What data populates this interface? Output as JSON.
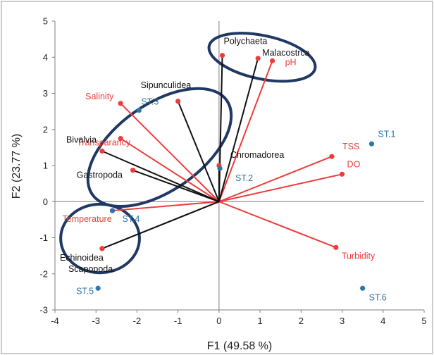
{
  "chart_data": {
    "type": "scatter",
    "subtype": "biplot",
    "xlabel": "F1 (49.58 %)",
    "ylabel": "F2 (23.77 %)",
    "xlim": [
      -4,
      5
    ],
    "ylim": [
      -3,
      5
    ],
    "x_ticks": [
      "-4",
      "-3",
      "-2",
      "-1",
      "0",
      "1",
      "2",
      "3",
      "4",
      "5"
    ],
    "y_ticks": [
      "-3",
      "-2",
      "-1",
      "0",
      "1",
      "2",
      "3",
      "4",
      "5"
    ],
    "grid": false,
    "colors": {
      "environmental": "#ee3b3b",
      "biological": "#111111",
      "station": "#2e75a8",
      "ellipse": "#1f3864"
    },
    "series": [
      {
        "group": "environmental",
        "points": [
          {
            "label": "Salinity",
            "x": -2.4,
            "y": 2.72
          },
          {
            "label": "Transparancy",
            "x": -2.4,
            "y": 1.75
          },
          {
            "label": "Temperature",
            "x": -2.6,
            "y": -0.25
          },
          {
            "label": "TSS",
            "x": 2.75,
            "y": 1.25
          },
          {
            "label": "DO",
            "x": 3.0,
            "y": 0.76
          },
          {
            "label": "Turbidity",
            "x": 2.85,
            "y": -1.27
          },
          {
            "label": "pH",
            "x": 1.3,
            "y": 3.9
          }
        ]
      },
      {
        "group": "biological",
        "points": [
          {
            "label": "Polychaeta",
            "x": 0.08,
            "y": 4.05
          },
          {
            "label": "Malacostrca",
            "x": 0.95,
            "y": 3.97
          },
          {
            "label": "Sipunculidea",
            "x": -1.0,
            "y": 2.78
          },
          {
            "label": "Bivalvia",
            "x": -2.85,
            "y": 1.4
          },
          {
            "label": "Gastropoda",
            "x": -2.1,
            "y": 0.87
          },
          {
            "label": "Chromadorea",
            "x": 0.0,
            "y": 1.0
          },
          {
            "label": "Echinoidea",
            "x": -2.85,
            "y": -1.3
          },
          {
            "label": "Scapopoda",
            "x": -2.85,
            "y": -1.3
          }
        ]
      },
      {
        "group": "station",
        "points": [
          {
            "label": "ST.1",
            "x": 3.72,
            "y": 1.6
          },
          {
            "label": "ST.2",
            "x": 0.02,
            "y": 0.92
          },
          {
            "label": "ST.3",
            "x": -1.95,
            "y": 2.53
          },
          {
            "label": "ST.4",
            "x": -2.6,
            "y": -0.25
          },
          {
            "label": "ST.5",
            "x": -2.95,
            "y": -2.4
          },
          {
            "label": "ST.6",
            "x": 3.5,
            "y": -2.4
          }
        ]
      }
    ],
    "clusters": [
      {
        "label_group": [
          "Polychaeta",
          "Malacostrca",
          "pH"
        ],
        "cx": 1.05,
        "cy": 4.0,
        "rx": 1.32,
        "ry": 0.6,
        "rotate_deg": 12
      },
      {
        "label_group": [
          "Salinity",
          "Sipunculidea",
          "Transparancy",
          "Bivalvia",
          "Gastropoda",
          "ST.3"
        ],
        "cx": -1.45,
        "cy": 1.5,
        "rx": 2.0,
        "ry": 1.2,
        "rotate_deg": -35
      },
      {
        "label_group": [
          "Temperature",
          "ST.4",
          "Echinoidea",
          "Scapopoda"
        ],
        "cx": -2.9,
        "cy": -1.02,
        "rx": 0.96,
        "ry": 0.95,
        "rotate_deg": 0
      }
    ]
  }
}
